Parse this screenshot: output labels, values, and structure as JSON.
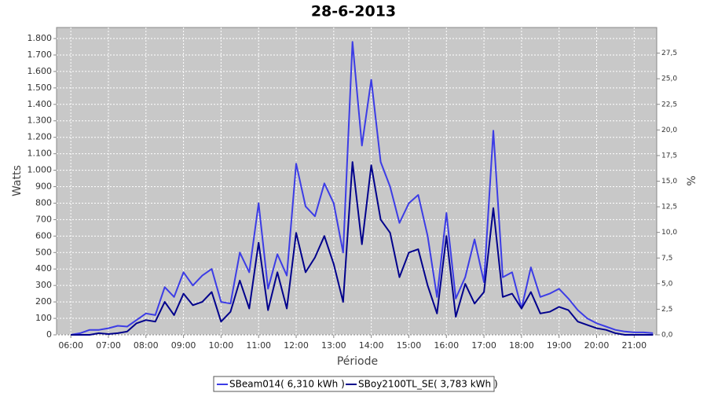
{
  "chart_data": {
    "type": "line",
    "title": "28-6-2013",
    "x_label": "Période",
    "y_label": "Watts",
    "y2_label": "%",
    "x": [
      6,
      6.25,
      6.5,
      6.75,
      7,
      7.25,
      7.5,
      7.75,
      8,
      8.25,
      8.5,
      8.75,
      9,
      9.25,
      9.5,
      9.75,
      10,
      10.25,
      10.5,
      10.75,
      11,
      11.25,
      11.5,
      11.75,
      12,
      12.25,
      12.5,
      12.75,
      13,
      13.25,
      13.5,
      13.75,
      14,
      14.25,
      14.5,
      14.75,
      15,
      15.25,
      15.5,
      15.75,
      16,
      16.25,
      16.5,
      16.75,
      17,
      17.25,
      17.5,
      17.75,
      18,
      18.25,
      18.5,
      18.75,
      19,
      19.25,
      19.5,
      19.75,
      20,
      20.25,
      20.5,
      20.75,
      21,
      21.25,
      21.5
    ],
    "series": [
      {
        "name": "SBeam014( 6,310 kWh )",
        "color": "#3c3ce6",
        "values": [
          0,
          10,
          30,
          30,
          40,
          55,
          50,
          90,
          130,
          120,
          290,
          230,
          380,
          300,
          360,
          400,
          200,
          190,
          500,
          380,
          800,
          280,
          490,
          360,
          1040,
          780,
          720,
          920,
          800,
          500,
          1780,
          1150,
          1550,
          1050,
          900,
          680,
          800,
          850,
          600,
          230,
          740,
          220,
          350,
          580,
          320,
          1240,
          350,
          380,
          160,
          410,
          230,
          250,
          280,
          220,
          150,
          100,
          70,
          50,
          30,
          20,
          15,
          15,
          10
        ]
      },
      {
        "name": "SBoy2100TL_SE( 3,783 kWh )",
        "color": "#00008c",
        "values": [
          0,
          0,
          0,
          10,
          5,
          10,
          20,
          70,
          90,
          80,
          200,
          120,
          250,
          180,
          200,
          260,
          80,
          140,
          330,
          160,
          560,
          150,
          380,
          160,
          620,
          380,
          470,
          600,
          430,
          200,
          1050,
          550,
          1030,
          700,
          620,
          350,
          500,
          520,
          300,
          130,
          600,
          110,
          310,
          190,
          260,
          770,
          230,
          250,
          160,
          260,
          130,
          140,
          170,
          150,
          80,
          60,
          40,
          30,
          10,
          0,
          0,
          0,
          0
        ]
      }
    ],
    "xlim": [
      5.62,
      21.6
    ],
    "xticks": [
      {
        "value": 6,
        "label": "06:00"
      },
      {
        "value": 7,
        "label": "07:00"
      },
      {
        "value": 8,
        "label": "08:00"
      },
      {
        "value": 9,
        "label": "09:00"
      },
      {
        "value": 10,
        "label": "10:00"
      },
      {
        "value": 11,
        "label": "11:00"
      },
      {
        "value": 12,
        "label": "12:00"
      },
      {
        "value": 13,
        "label": "13:00"
      },
      {
        "value": 14,
        "label": "14:00"
      },
      {
        "value": 15,
        "label": "15:00"
      },
      {
        "value": 16,
        "label": "16:00"
      },
      {
        "value": 17,
        "label": "17:00"
      },
      {
        "value": 18,
        "label": "18:00"
      },
      {
        "value": 19,
        "label": "19:00"
      },
      {
        "value": 20,
        "label": "20:00"
      },
      {
        "value": 21,
        "label": "21:00"
      }
    ],
    "ylim": [
      0,
      1867
    ],
    "yticks": [
      0,
      100,
      200,
      300,
      400,
      500,
      600,
      700,
      800,
      900,
      {
        "value": 1000,
        "label": "1.000"
      },
      {
        "value": 1100,
        "label": "1.100"
      },
      {
        "value": 1200,
        "label": "1.200"
      },
      {
        "value": 1300,
        "label": "1.300"
      },
      {
        "value": 1400,
        "label": "1.400"
      },
      {
        "value": 1500,
        "label": "1.500"
      },
      {
        "value": 1600,
        "label": "1.600"
      },
      {
        "value": 1700,
        "label": "1.700"
      },
      {
        "value": 1800,
        "label": "1.800"
      }
    ],
    "y2lim": [
      0,
      30
    ],
    "y2ticks": [
      {
        "value": 0,
        "label": "0,0"
      },
      {
        "value": 2.5,
        "label": "2,5"
      },
      {
        "value": 5,
        "label": "5,0"
      },
      {
        "value": 7.5,
        "label": "7,5"
      },
      {
        "value": 10,
        "label": "10,0"
      },
      {
        "value": 12.5,
        "label": "12,5"
      },
      {
        "value": 15,
        "label": "15,0"
      },
      {
        "value": 17.5,
        "label": "17,5"
      },
      {
        "value": 20,
        "label": "20,0"
      },
      {
        "value": 22.5,
        "label": "22,5"
      },
      {
        "value": 25,
        "label": "25,0"
      },
      {
        "value": 27.5,
        "label": "27,5"
      }
    ],
    "grid": true,
    "legend": "bottom"
  }
}
